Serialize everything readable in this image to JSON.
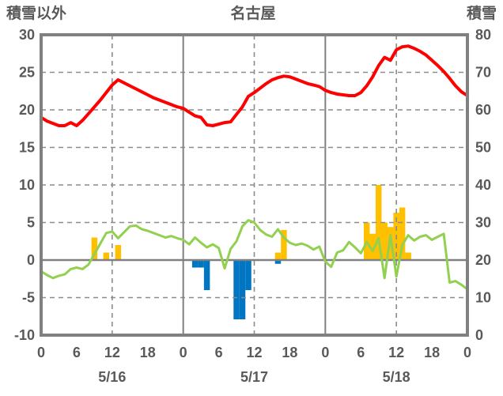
{
  "header": {
    "left_axis_title": "積雪以外",
    "chart_title": "名古屋",
    "right_axis_title": "積雪"
  },
  "chart_data": {
    "type": "mixed-line-bar",
    "title": "名古屋",
    "left_axis": {
      "title": "積雪以外",
      "min": -10,
      "max": 30,
      "ticks": [
        30,
        25,
        20,
        15,
        10,
        5,
        0,
        -5,
        -10
      ]
    },
    "right_axis": {
      "title": "積雪",
      "min": 0,
      "max": 80,
      "ticks": [
        80,
        70,
        60,
        50,
        40,
        30,
        20,
        10,
        0
      ]
    },
    "x_axis": {
      "unit": "hour",
      "range_hours": [
        0,
        72
      ],
      "tick_interval_hours": 6,
      "tick_labels": [
        "0",
        "6",
        "12",
        "18",
        "0",
        "6",
        "12",
        "18",
        "0",
        "6",
        "12",
        "18",
        "0"
      ],
      "day_labels": [
        {
          "text": "5/16",
          "center_hour": 12
        },
        {
          "text": "5/17",
          "center_hour": 36
        },
        {
          "text": "5/18",
          "center_hour": 60
        }
      ],
      "solid_vlines_hours": [
        24,
        48
      ],
      "dashed_vlines_hours": [
        12,
        36,
        60
      ]
    },
    "series": [
      {
        "name": "red-line",
        "type": "line",
        "axis": "left",
        "color": "#ff0000",
        "stroke_width": 4,
        "x_step_hours": 1,
        "values": [
          19.0,
          18.5,
          18.2,
          17.9,
          17.9,
          18.3,
          17.9,
          18.6,
          19.5,
          20.4,
          21.3,
          22.3,
          23.3,
          24.0,
          23.6,
          23.2,
          22.8,
          22.4,
          22.0,
          21.6,
          21.3,
          21.0,
          20.7,
          20.4,
          20.2,
          19.7,
          19.2,
          19.0,
          18.0,
          17.9,
          18.1,
          18.3,
          18.4,
          19.4,
          20.4,
          21.8,
          22.3,
          22.9,
          23.5,
          24.0,
          24.3,
          24.5,
          24.4,
          24.1,
          23.8,
          23.5,
          23.3,
          23.1,
          22.6,
          22.3,
          22.1,
          22.0,
          21.9,
          21.9,
          22.3,
          23.2,
          24.4,
          25.9,
          27.0,
          26.6,
          28.0,
          28.4,
          28.5,
          28.2,
          27.8,
          27.3,
          26.6,
          25.9,
          25.1,
          24.2,
          23.2,
          22.4,
          21.9
        ]
      },
      {
        "name": "green-line",
        "type": "line",
        "axis": "left",
        "color": "#92d050",
        "stroke_width": 3,
        "x_step_hours": 1,
        "values": [
          -1.5,
          -2.0,
          -2.4,
          -2.1,
          -1.9,
          -1.2,
          -1.0,
          -1.2,
          -0.6,
          0.8,
          2.2,
          3.6,
          3.8,
          2.9,
          3.7,
          4.5,
          4.6,
          4.1,
          3.9,
          3.6,
          3.3,
          3.0,
          3.2,
          2.9,
          2.7,
          2.1,
          3.0,
          2.3,
          1.7,
          2.1,
          1.6,
          -1.1,
          1.5,
          2.5,
          4.5,
          5.3,
          5.0,
          4.0,
          3.4,
          3.1,
          4.1,
          3.0,
          2.3,
          2.0,
          2.2,
          1.9,
          1.4,
          1.8,
          -0.2,
          -0.9,
          1.0,
          1.3,
          2.4,
          1.7,
          0.9,
          2.4,
          1.2,
          2.9,
          -2.4,
          3.3,
          -2.2,
          2.0,
          3.3,
          2.6,
          3.1,
          3.3,
          2.7,
          3.1,
          3.5,
          -3.0,
          -2.8,
          -3.3,
          -3.9
        ]
      },
      {
        "name": "yellow-bars",
        "type": "bar",
        "axis": "left",
        "color": "#ffc000",
        "bar_width_hours": 1,
        "points": [
          [
            9,
            3
          ],
          [
            11,
            1
          ],
          [
            13,
            2
          ],
          [
            40,
            1
          ],
          [
            41,
            4
          ],
          [
            55,
            5
          ],
          [
            56,
            3.5
          ],
          [
            57,
            10
          ],
          [
            58,
            5
          ],
          [
            59,
            4.4
          ],
          [
            60,
            6.3
          ],
          [
            61,
            7
          ],
          [
            62,
            1
          ]
        ]
      },
      {
        "name": "blue-bars",
        "type": "bar",
        "axis": "left",
        "color": "#0075c2",
        "bar_width_hours": 1,
        "points": [
          [
            26,
            -1
          ],
          [
            27,
            -1
          ],
          [
            28,
            -4
          ],
          [
            33,
            -7.9
          ],
          [
            34,
            -7.9
          ],
          [
            35,
            -4
          ],
          [
            40,
            -0.5
          ]
        ]
      }
    ],
    "grid": {
      "gridline_color": "#8c8c8c",
      "frame_color": "#808080",
      "zero_line_color": "#808080",
      "background": "#ffffff"
    },
    "text_color": "#595959"
  }
}
